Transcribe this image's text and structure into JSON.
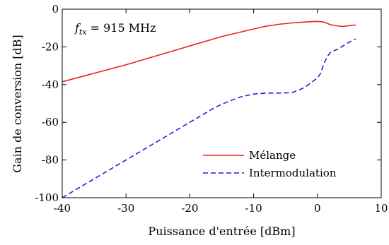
{
  "chart_data": {
    "type": "line",
    "xlabel": "Puissance d'entrée [dBm]",
    "ylabel": "Gain de conversion [dB]",
    "xlim": [
      -40,
      10
    ],
    "ylim": [
      -100,
      0
    ],
    "xticks": [
      -40,
      -30,
      -20,
      -10,
      0,
      10
    ],
    "yticks": [
      0,
      -20,
      -40,
      -60,
      -80,
      -100
    ],
    "xtick_labels": [
      "-40",
      "-30",
      "-20",
      "-10",
      "0",
      "10"
    ],
    "ytick_labels": [
      "0",
      "-20",
      "-40",
      "-60",
      "-80",
      "-100"
    ],
    "grid": false,
    "legend_position": "lower-right",
    "annotation": {
      "var": "f",
      "sub": "tx",
      "rest": " = 915 MHz"
    },
    "series": [
      {
        "name": "Mélange",
        "color": "#e8211c",
        "style": "solid",
        "x": [
          -40,
          -35,
          -30,
          -25,
          -20,
          -15,
          -10,
          -8,
          -6,
          -4,
          -2,
          0,
          1,
          2,
          3,
          4,
          5,
          6
        ],
        "y": [
          -38.5,
          -34,
          -29.5,
          -24.5,
          -19.5,
          -14.5,
          -10.5,
          -9,
          -8,
          -7.3,
          -6.8,
          -6.5,
          -6.8,
          -8.2,
          -8.8,
          -9.2,
          -8.7,
          -8.4
        ]
      },
      {
        "name": "Intermodulation",
        "color": "#1f24d8",
        "style": "dashed",
        "x": [
          -40,
          -35,
          -30,
          -25,
          -20,
          -16,
          -14,
          -12,
          -10,
          -8,
          -6,
          -4,
          -3,
          -2,
          -1,
          0,
          0.5,
          1,
          1.5,
          2,
          3,
          4,
          5,
          6
        ],
        "y": [
          -100,
          -90,
          -80,
          -70,
          -60,
          -52,
          -49,
          -46.5,
          -45,
          -44.5,
          -44.5,
          -44.3,
          -43,
          -41.5,
          -39,
          -36.5,
          -34,
          -29,
          -25.5,
          -23,
          -21.5,
          -19.5,
          -17.5,
          -15.8
        ]
      }
    ]
  }
}
